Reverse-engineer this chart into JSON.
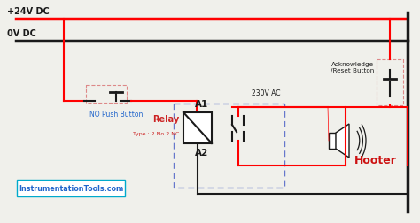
{
  "bg_color": "#f0f0eb",
  "plus24_label": "+24V DC",
  "zero_label": "0V DC",
  "relay_label": "Relay",
  "relay_type": "Type : 2 No 2 NC",
  "a1_label": "A1",
  "a2_label": "A2",
  "no_push_label": "NO Push Button",
  "hooter_label": "Hooter",
  "ack_label": "Acknowledge\n/Reset Button",
  "ac_label": "230V AC",
  "website_label": "InstrumentationTools.com",
  "red": "#ff0000",
  "black": "#1a1a1a",
  "blue": "#2266cc",
  "dashed_pink": "#dd8888",
  "dashed_blue": "#6677cc",
  "relay_red": "#cc2222",
  "hooter_red": "#cc1111"
}
